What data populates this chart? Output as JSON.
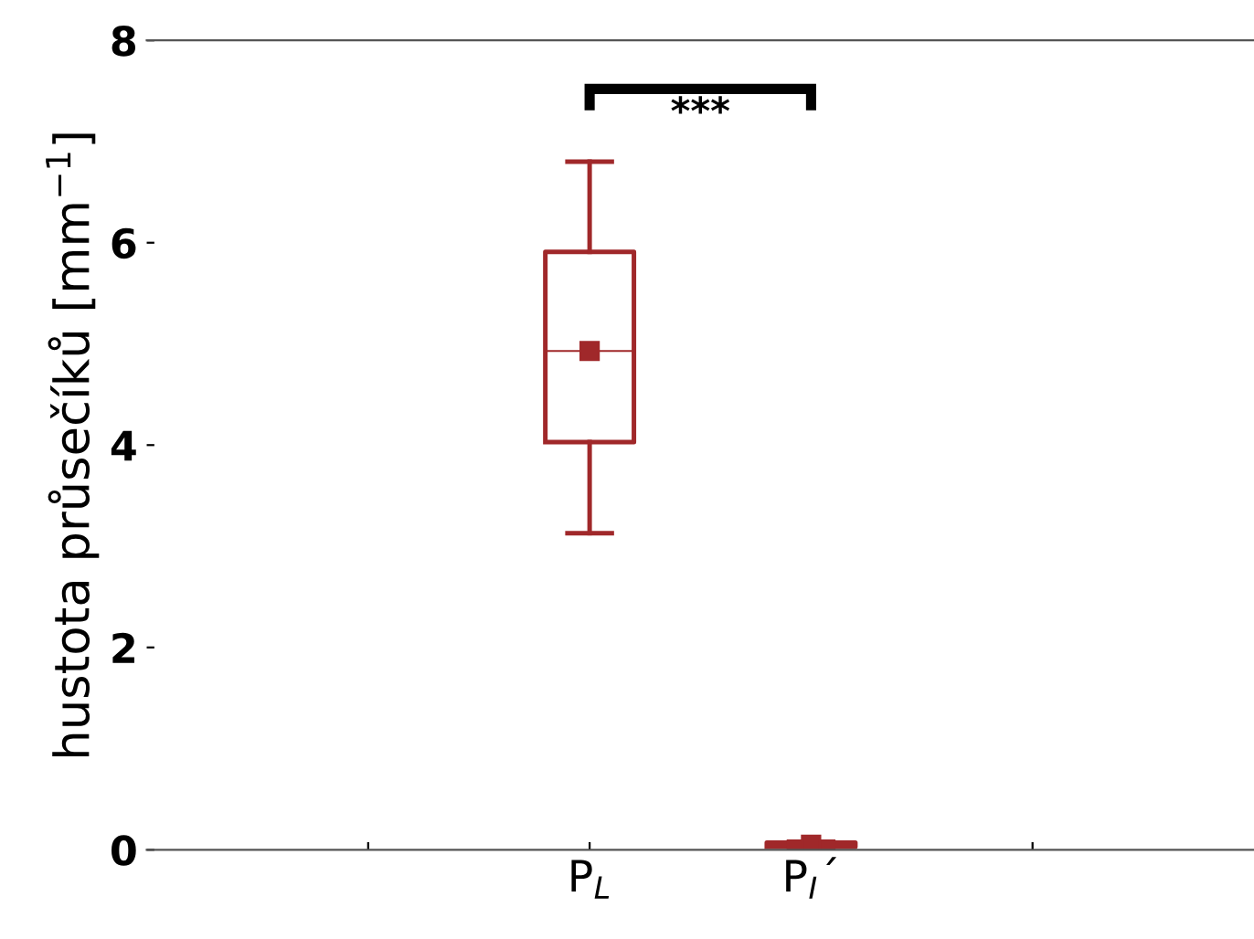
{
  "chart_data": {
    "type": "box",
    "ylabel": "hustota průsečíků [mm$^{−1}$]",
    "categories": [
      null,
      "P$_{L}$",
      "P$_{I}$´",
      null
    ],
    "series": [
      {
        "color": "#a0282a",
        "marker": "square",
        "boxes": [
          null,
          {
            "low": 3.13,
            "q1": 4.03,
            "median": 4.93,
            "mean": 4.93,
            "q3": 5.91,
            "high": 6.8
          },
          {
            "low": 0.02,
            "q1": 0.03,
            "median": 0.05,
            "mean": 0.05,
            "q3": 0.07,
            "high": 0.08
          },
          null
        ]
      }
    ],
    "ylim": [
      0,
      8
    ],
    "yticks": [
      0,
      2,
      4,
      6,
      8
    ],
    "grid": false,
    "legend": false,
    "annotations": [
      "***"
    ]
  }
}
